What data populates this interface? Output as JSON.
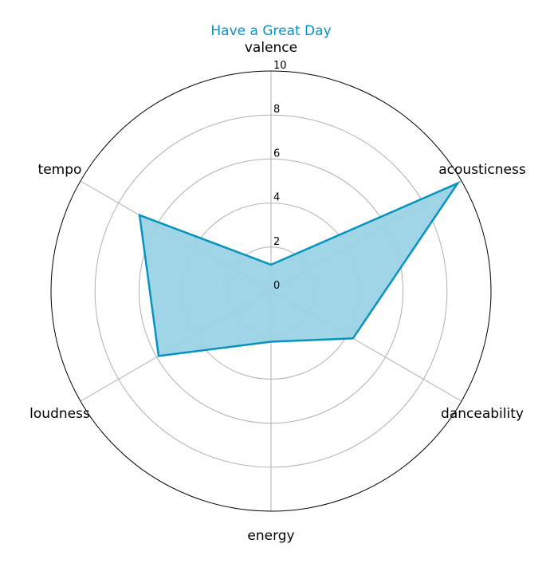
{
  "chart_data": {
    "type": "radar",
    "title": "Have a Great Day",
    "axes": [
      "valence",
      "acousticness",
      "danceability",
      "energy",
      "loudness",
      "tempo"
    ],
    "series": [
      {
        "values": [
          1.2,
          9.8,
          4.3,
          2.3,
          5.9,
          6.9
        ]
      }
    ],
    "rlim": [
      0,
      10
    ],
    "radial_ticks": [
      "0",
      "2",
      "4",
      "6",
      "8",
      "10"
    ],
    "grid": true,
    "colors": {
      "line": "#0893be",
      "fill": "#9ad3e5",
      "title": "#0893be"
    }
  }
}
